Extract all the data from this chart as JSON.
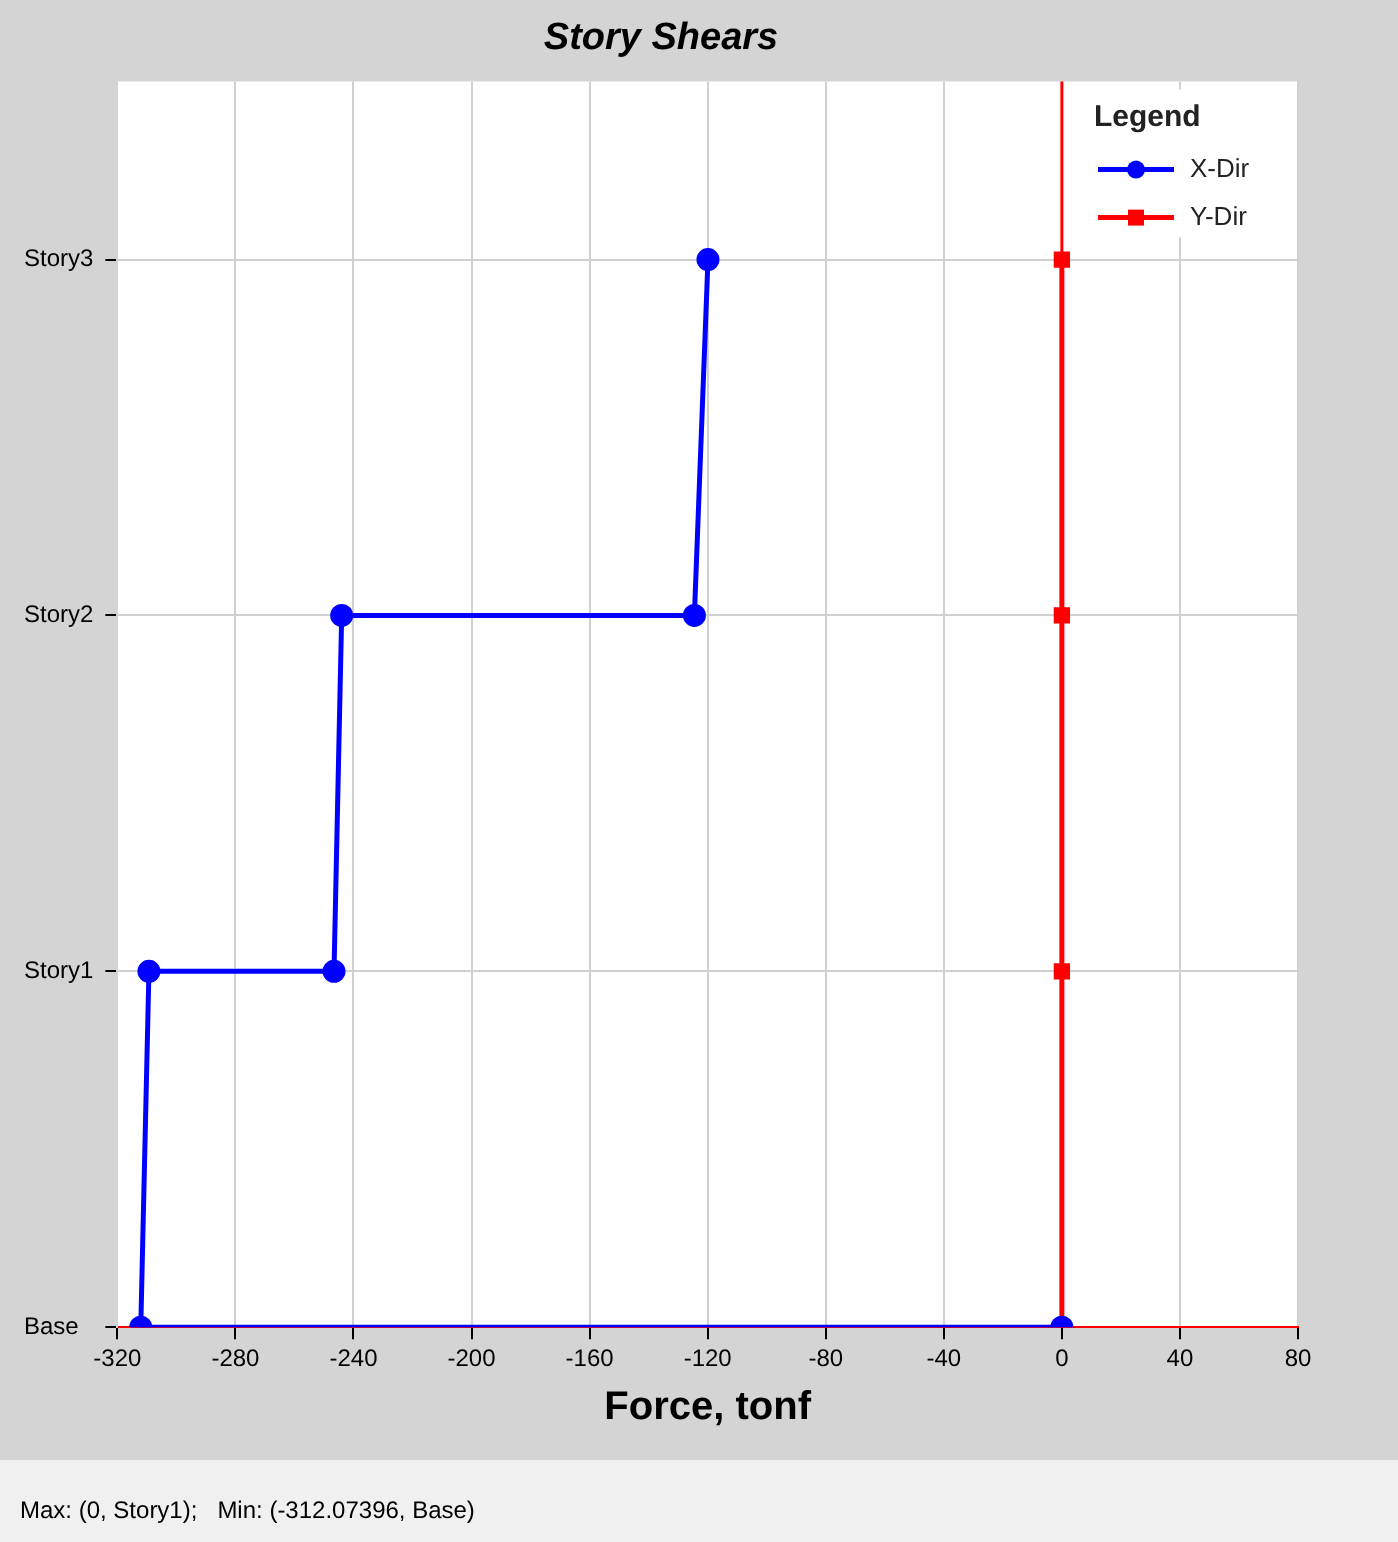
{
  "chart_data": {
    "type": "line",
    "orientation": "horizontal",
    "title": "Story Shears",
    "xlabel": "Force, tonf",
    "legend_title": "Legend",
    "legend": "top right",
    "grid": true,
    "categories": [
      "Story3",
      "Story2",
      "Story1",
      "Base"
    ],
    "xlim": [
      -320,
      80
    ],
    "xticks": [
      -320,
      -280,
      -240,
      -200,
      -160,
      -120,
      -80,
      -40,
      0,
      40,
      80
    ],
    "series": [
      {
        "name": "X-Dir",
        "color": "#0000ff",
        "marker": "circle",
        "x": [
          "Base",
          "Base",
          "Story1",
          "Story1",
          "Story2",
          "Story2",
          "Story3"
        ],
        "values": [
          0,
          -312.07,
          -309.3,
          -246.6,
          -244,
          -124.5,
          -119.9
        ]
      },
      {
        "name": "Y-Dir",
        "color": "#ff0000",
        "marker": "square",
        "x": [
          "Base",
          "Story1",
          "Story2",
          "Story3"
        ],
        "values": [
          0,
          0,
          0,
          0
        ]
      }
    ],
    "ref_lines": [
      {
        "axis": "x",
        "value": 0,
        "color": "#ff0000"
      }
    ],
    "annotations": [
      "Max: (0, Story1);   Min: (-312.07396, Base)"
    ]
  }
}
